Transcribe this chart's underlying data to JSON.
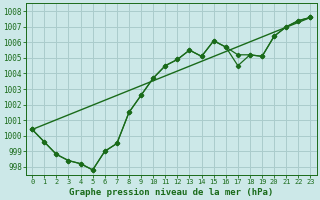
{
  "title": "Graphe pression niveau de la mer (hPa)",
  "background_color": "#cce8e8",
  "grid_color": "#aacccc",
  "line_color": "#1a6b1a",
  "xlim": [
    -0.5,
    23.5
  ],
  "ylim": [
    997.5,
    1008.5
  ],
  "yticks": [
    998,
    999,
    1000,
    1001,
    1002,
    1003,
    1004,
    1005,
    1006,
    1007,
    1008
  ],
  "xticks": [
    0,
    1,
    2,
    3,
    4,
    5,
    6,
    7,
    8,
    9,
    10,
    11,
    12,
    13,
    14,
    15,
    16,
    17,
    18,
    19,
    20,
    21,
    22,
    23
  ],
  "series1": [
    1000.4,
    999.6,
    998.8,
    998.4,
    998.2,
    997.8,
    999.0,
    999.5,
    1001.5,
    1002.6,
    1003.7,
    1004.5,
    1004.9,
    1005.5,
    1005.1,
    1006.1,
    1005.7,
    1004.5,
    1005.2,
    1005.1,
    1006.4,
    1007.0,
    1007.4,
    1007.6
  ],
  "series2": [
    1000.4,
    999.6,
    998.8,
    998.4,
    998.2,
    997.8,
    999.0,
    999.5,
    1001.5,
    1002.6,
    1003.7,
    1004.5,
    1004.9,
    1005.5,
    1005.1,
    1006.1,
    1005.7,
    1005.2,
    1005.2,
    1005.1,
    1006.4,
    1007.0,
    1007.4,
    1007.6
  ],
  "series3_x": [
    0,
    23
  ],
  "series3_y": [
    1000.4,
    1007.6
  ],
  "ylabel_fontsize": 5.5,
  "xlabel_fontsize": 6.5,
  "tick_labelsize": 5.0
}
